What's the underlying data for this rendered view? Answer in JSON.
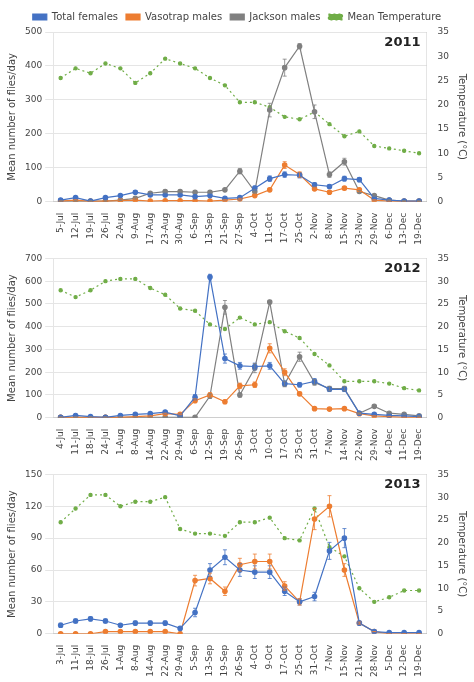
{
  "chart_data": [
    {
      "type": "line",
      "annotations": [
        {
          "text": "2011"
        }
      ],
      "categories": [
        "5-Jul",
        "12-Jul",
        "19-Jul",
        "26-Jul",
        "2-Aug",
        "9-Aug",
        "17-Aug",
        "23-Aug",
        "30-Aug",
        "6-Sep",
        "13-Sep",
        "21-Sep",
        "27-Sep",
        "4-Oct",
        "11-Oct",
        "17-Oct",
        "25-Oct",
        "2-Nov",
        "8-Nov",
        "15-Nov",
        "23-Nov",
        "29-Nov",
        "6-Dec",
        "13-Dec",
        "19-Dec"
      ],
      "series": [
        {
          "name": "Total females",
          "color": "#4472C4",
          "marker": "o",
          "line_style": "solid",
          "values": [
            5,
            12,
            2,
            12,
            18,
            28,
            20,
            20,
            20,
            15,
            18,
            10,
            12,
            40,
            68,
            80,
            78,
            50,
            45,
            68,
            65,
            10,
            5,
            2,
            2
          ],
          "errors": [
            3,
            3,
            1,
            2,
            3,
            4,
            3,
            3,
            3,
            2,
            3,
            2,
            3,
            6,
            8,
            8,
            8,
            6,
            5,
            7,
            6,
            2,
            1,
            1,
            1
          ]
        },
        {
          "name": "Vasotrap males",
          "color": "#ED7D31",
          "marker": "o",
          "line_style": "solid",
          "values": [
            2,
            5,
            1,
            2,
            3,
            5,
            2,
            3,
            3,
            3,
            2,
            5,
            8,
            18,
            35,
            108,
            80,
            38,
            28,
            40,
            35,
            5,
            2,
            1,
            1
          ],
          "errors": [
            1,
            1,
            0,
            1,
            1,
            1,
            1,
            1,
            1,
            1,
            1,
            1,
            2,
            4,
            5,
            10,
            8,
            5,
            4,
            5,
            5,
            1,
            1,
            0,
            0
          ]
        },
        {
          "name": "Jackson males",
          "color": "#808080",
          "marker": "o",
          "line_style": "solid",
          "values": [
            2,
            2,
            2,
            2,
            5,
            10,
            25,
            30,
            30,
            28,
            28,
            35,
            90,
            30,
            270,
            395,
            458,
            265,
            80,
            118,
            30,
            18,
            5,
            2,
            2
          ],
          "errors": [
            1,
            1,
            1,
            1,
            1,
            2,
            3,
            4,
            4,
            3,
            3,
            4,
            8,
            5,
            20,
            25,
            8,
            20,
            8,
            10,
            3,
            2,
            1,
            1,
            1
          ]
        },
        {
          "name": "Mean Temperature",
          "color": "#70AD47",
          "marker": ".",
          "line_style": "dotted",
          "axis": "y2",
          "values": [
            25.5,
            27.5,
            26.5,
            28.5,
            27.5,
            24.5,
            26.5,
            29.5,
            28.5,
            27.5,
            25.5,
            24.0,
            20.5,
            20.5,
            19.5,
            17.5,
            17.0,
            18.5,
            16.0,
            13.5,
            14.5,
            11.5,
            11.0,
            10.5,
            10.0
          ]
        }
      ],
      "ylabel": "Mean number of flies/day",
      "y2label": "Temperature (°C)",
      "ylim": [
        0,
        500
      ],
      "yticks": [
        0,
        100,
        200,
        300,
        400,
        500
      ],
      "y2lim": [
        0,
        35
      ],
      "y2ticks": [
        0,
        5,
        10,
        15,
        20,
        25,
        30,
        35
      ],
      "grid": "y",
      "legend": "top"
    },
    {
      "type": "line",
      "annotations": [
        {
          "text": "2012"
        }
      ],
      "categories": [
        "4-Jul",
        "11-Jul",
        "18-Jul",
        "24-Jul",
        "1-Aug",
        "8-Aug",
        "14-Aug",
        "22-Aug",
        "29-Aug",
        "6-Sep",
        "12-Sep",
        "19-Sep",
        "26-Sep",
        "3-Oct",
        "10-Oct",
        "17-Oct",
        "25-Oct",
        "31-Oct",
        "7-Nov",
        "14-Nov",
        "22-Nov",
        "29-Nov",
        "4-Dec",
        "11-Dec",
        "19-Dec"
      ],
      "series": [
        {
          "name": "Total females",
          "color": "#4472C4",
          "marker": "o",
          "line_style": "solid",
          "values": [
            2,
            10,
            5,
            2,
            10,
            15,
            18,
            25,
            8,
            90,
            618,
            260,
            228,
            225,
            228,
            150,
            145,
            160,
            125,
            125,
            20,
            15,
            10,
            8,
            5
          ],
          "errors": [
            1,
            2,
            1,
            1,
            2,
            2,
            3,
            4,
            2,
            12,
            12,
            20,
            15,
            15,
            15,
            12,
            10,
            12,
            10,
            10,
            3,
            2,
            2,
            1,
            1
          ]
        },
        {
          "name": "Vasotrap males",
          "color": "#ED7D31",
          "marker": "o",
          "line_style": "solid",
          "values": [
            2,
            2,
            2,
            2,
            2,
            5,
            8,
            18,
            15,
            75,
            100,
            70,
            140,
            145,
            305,
            200,
            105,
            40,
            38,
            40,
            18,
            8,
            5,
            2,
            2
          ],
          "errors": [
            0,
            1,
            0,
            0,
            1,
            1,
            1,
            2,
            2,
            8,
            10,
            8,
            12,
            12,
            20,
            15,
            8,
            5,
            5,
            5,
            2,
            1,
            1,
            0,
            0
          ]
        },
        {
          "name": "Jackson males",
          "color": "#808080",
          "marker": "o",
          "line_style": "solid",
          "values": [
            2,
            2,
            2,
            2,
            2,
            2,
            2,
            2,
            2,
            2,
            95,
            485,
            100,
            218,
            508,
            148,
            268,
            155,
            128,
            128,
            20,
            50,
            20,
            15,
            8
          ],
          "errors": [
            1,
            1,
            1,
            1,
            1,
            1,
            1,
            1,
            1,
            1,
            10,
            30,
            10,
            20,
            8,
            12,
            20,
            12,
            10,
            10,
            3,
            5,
            2,
            2,
            1
          ]
        },
        {
          "name": "Mean Temperature",
          "color": "#70AD47",
          "marker": ".",
          "line_style": "dotted",
          "axis": "y2",
          "values": [
            28.0,
            26.5,
            28.0,
            30.0,
            30.5,
            30.5,
            28.5,
            27.0,
            24.0,
            23.5,
            20.5,
            19.5,
            22.0,
            20.5,
            21.0,
            19.0,
            17.5,
            14.0,
            11.5,
            8.0,
            8.0,
            8.0,
            7.5,
            6.5,
            6.0
          ]
        }
      ],
      "ylabel": "Mean number of flies/day",
      "y2label": "Temperature (°C)",
      "ylim": [
        0,
        700
      ],
      "yticks": [
        0,
        100,
        200,
        300,
        400,
        500,
        600,
        700
      ],
      "y2lim": [
        0,
        35
      ],
      "y2ticks": [
        0,
        5,
        10,
        15,
        20,
        25,
        30,
        35
      ],
      "grid": "y"
    },
    {
      "type": "line",
      "annotations": [
        {
          "text": "2013"
        }
      ],
      "categories": [
        "3-Jul",
        "11-Jul",
        "18-Jul",
        "26-Jul",
        "1-Aug",
        "8-Aug",
        "14-Aug",
        "22-Aug",
        "29-Aug",
        "5-Sep",
        "13-Sep",
        "19-Sep",
        "26-Sep",
        "4-Oct",
        "9-Oct",
        "17-Oct",
        "25-Oct",
        "31-Oct",
        "7-Nov",
        "15-Nov",
        "21-Nov",
        "28-Nov",
        "5-Dec",
        "12-Dec",
        "19-Dec"
      ],
      "series": [
        {
          "name": "Total females",
          "color": "#4472C4",
          "marker": "o",
          "line_style": "solid",
          "values": [
            8,
            12,
            14,
            12,
            8,
            10,
            10,
            10,
            5,
            20,
            60,
            72,
            60,
            58,
            58,
            40,
            30,
            35,
            78,
            90,
            10,
            2,
            1,
            1,
            1
          ],
          "errors": [
            2,
            2,
            2,
            2,
            1,
            2,
            2,
            2,
            1,
            4,
            6,
            7,
            6,
            6,
            6,
            4,
            3,
            4,
            8,
            9,
            2,
            1,
            0,
            0,
            0
          ]
        },
        {
          "name": "Vasotrap males",
          "color": "#ED7D31",
          "marker": "o",
          "line_style": "solid",
          "values": [
            0,
            0,
            0,
            2,
            2,
            2,
            2,
            2,
            0,
            50,
            52,
            40,
            65,
            68,
            68,
            45,
            30,
            108,
            120,
            60,
            10,
            2,
            0,
            0,
            0
          ],
          "errors": [
            0,
            0,
            0,
            0,
            0,
            0,
            0,
            0,
            0,
            5,
            5,
            4,
            6,
            7,
            7,
            4,
            3,
            10,
            10,
            6,
            1,
            0,
            0,
            0,
            0
          ]
        },
        {
          "name": "Mean Temperature",
          "color": "#70AD47",
          "marker": ".",
          "line_style": "dotted",
          "axis": "y2",
          "values": [
            24.5,
            27.5,
            30.5,
            30.5,
            28.0,
            29.0,
            29.0,
            30.0,
            23.0,
            22.0,
            22.0,
            21.5,
            24.5,
            24.5,
            25.5,
            21.0,
            20.5,
            27.5,
            19.0,
            17.0,
            10.0,
            7.0,
            8.0,
            9.5,
            9.5
          ]
        }
      ],
      "ylabel": "Mean number of flies/day",
      "y2label": "Temperature (°C)",
      "ylim": [
        0,
        150
      ],
      "yticks": [
        0,
        30,
        60,
        90,
        120,
        150
      ],
      "y2lim": [
        0,
        35
      ],
      "y2ticks": [
        0,
        5,
        10,
        15,
        20,
        25,
        30,
        35
      ],
      "grid": "y"
    }
  ]
}
